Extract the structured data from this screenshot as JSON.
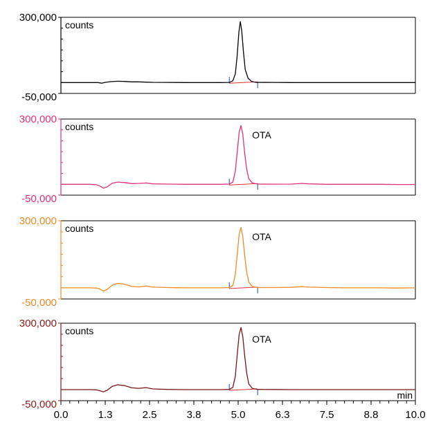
{
  "chart_data": [
    {
      "type": "line",
      "panel": 1,
      "color": "#000000",
      "axis_color": "#000000",
      "ylabel": "counts",
      "annotation": "",
      "ylim": [
        -50000,
        300000
      ],
      "y_tick_labels": [
        "300,000",
        "-50,000"
      ],
      "xlim": [
        0,
        10
      ],
      "peak": {
        "x": 5.06,
        "y": 280000
      },
      "baseline": 0,
      "series": [
        {
          "x": [
            0,
            0.8,
            1.05,
            1.15,
            1.25,
            1.4,
            1.6,
            1.8,
            2.0,
            2.2,
            2.4,
            2.6,
            3.0,
            3.5,
            4.0,
            4.5,
            4.75,
            4.85,
            4.92,
            4.97,
            5.02,
            5.06,
            5.1,
            5.15,
            5.2,
            5.28,
            5.38,
            5.5,
            6.0,
            6.5,
            7.0,
            7.5,
            8.0,
            8.5,
            9.0,
            9.5,
            10.0
          ],
          "y": [
            0,
            0,
            0,
            -3000,
            1000,
            4000,
            6000,
            5000,
            3000,
            3000,
            2000,
            1000,
            500,
            0,
            0,
            0,
            500,
            8000,
            40000,
            120000,
            230000,
            280000,
            240000,
            140000,
            60000,
            20000,
            5000,
            1000,
            500,
            0,
            0,
            0,
            0,
            0,
            0,
            0,
            0
          ]
        }
      ]
    },
    {
      "type": "line",
      "panel": 2,
      "color": "#E0307A",
      "axis_color": "#E0307A",
      "ylabel": "counts",
      "annotation": "OTA",
      "ylim": [
        -50000,
        300000
      ],
      "y_tick_labels": [
        "300,000",
        "-50,000"
      ],
      "xlim": [
        0,
        10
      ],
      "peak": {
        "x": 5.08,
        "y": 270000
      },
      "baseline": 0,
      "series": [
        {
          "x": [
            0,
            0.8,
            1.0,
            1.1,
            1.2,
            1.3,
            1.45,
            1.6,
            1.8,
            2.0,
            2.2,
            2.4,
            2.6,
            3.0,
            3.5,
            4.0,
            4.5,
            4.75,
            4.85,
            4.92,
            4.98,
            5.03,
            5.08,
            5.13,
            5.18,
            5.24,
            5.3,
            5.4,
            5.55,
            6.0,
            6.5,
            6.8,
            7.0,
            7.5,
            8.0,
            8.5,
            9.0,
            9.5,
            10.0
          ],
          "y": [
            0,
            0,
            -2000,
            -8000,
            -18000,
            -12000,
            5000,
            10000,
            8000,
            3000,
            4000,
            6000,
            2000,
            1000,
            0,
            0,
            0,
            1000,
            10000,
            60000,
            160000,
            240000,
            270000,
            230000,
            150000,
            70000,
            25000,
            6000,
            1000,
            500,
            1000,
            4000,
            2000,
            0,
            0,
            0,
            0,
            -1000,
            -1000
          ]
        }
      ]
    },
    {
      "type": "line",
      "panel": 3,
      "color": "#F08A24",
      "axis_color": "#F08A24",
      "ylabel": "counts",
      "annotation": "OTA",
      "ylim": [
        -50000,
        300000
      ],
      "y_tick_labels": [
        "300,000",
        "-50,000"
      ],
      "xlim": [
        0,
        10
      ],
      "peak": {
        "x": 5.08,
        "y": 270000
      },
      "baseline": 0,
      "series": [
        {
          "x": [
            0,
            0.8,
            1.0,
            1.1,
            1.2,
            1.3,
            1.45,
            1.6,
            1.8,
            2.0,
            2.2,
            2.4,
            2.6,
            3.0,
            3.5,
            4.0,
            4.5,
            4.75,
            4.85,
            4.92,
            4.98,
            5.03,
            5.08,
            5.13,
            5.18,
            5.24,
            5.3,
            5.4,
            5.55,
            6.0,
            6.5,
            6.8,
            7.0,
            7.5,
            8.0,
            8.5,
            9.0,
            9.5,
            10.0
          ],
          "y": [
            0,
            0,
            -1000,
            -6000,
            -14000,
            -8000,
            12000,
            20000,
            16000,
            6000,
            4000,
            8000,
            3000,
            1000,
            0,
            0,
            0,
            1000,
            10000,
            60000,
            160000,
            240000,
            270000,
            230000,
            150000,
            70000,
            25000,
            6000,
            1000,
            1000,
            2000,
            5000,
            3000,
            1000,
            0,
            0,
            0,
            -1000,
            0
          ]
        }
      ]
    },
    {
      "type": "line",
      "panel": 4,
      "color": "#7A1416",
      "axis_color": "#8B1A1A",
      "ylabel": "counts",
      "annotation": "OTA",
      "ylim": [
        -50000,
        300000
      ],
      "y_tick_labels": [
        "300,000",
        "-50,000"
      ],
      "xlim": [
        0,
        10
      ],
      "xlabel": "min",
      "x_tick_labels": [
        "0.0",
        "1.3",
        "2.5",
        "3.8",
        "5.0",
        "6.3",
        "7.5",
        "8.8",
        "10.0"
      ],
      "peak": {
        "x": 5.08,
        "y": 280000
      },
      "baseline": 0,
      "series": [
        {
          "x": [
            0,
            0.8,
            1.0,
            1.1,
            1.2,
            1.3,
            1.45,
            1.6,
            1.8,
            2.0,
            2.2,
            2.4,
            2.6,
            3.0,
            3.5,
            4.0,
            4.5,
            4.75,
            4.85,
            4.92,
            4.98,
            5.03,
            5.08,
            5.13,
            5.18,
            5.24,
            5.3,
            5.4,
            5.55,
            6.0,
            6.5,
            7.0,
            7.5,
            8.0,
            8.5,
            9.0,
            9.5,
            10.0
          ],
          "y": [
            0,
            0,
            -1000,
            -5000,
            -10000,
            -3000,
            15000,
            22000,
            18000,
            8000,
            6000,
            9000,
            3000,
            1000,
            0,
            0,
            0,
            1000,
            10000,
            60000,
            170000,
            250000,
            280000,
            240000,
            160000,
            75000,
            25000,
            6000,
            1000,
            500,
            0,
            0,
            0,
            0,
            0,
            0,
            0,
            0
          ]
        }
      ]
    }
  ]
}
